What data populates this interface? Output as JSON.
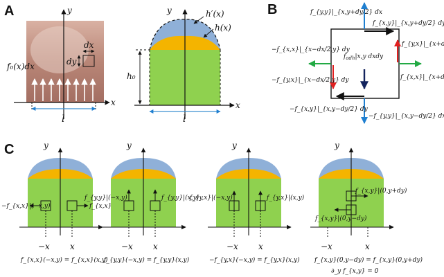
{
  "panels": {
    "a": "A",
    "b": "B",
    "c": "C"
  },
  "a_left": {
    "y": "y",
    "x": "x",
    "dx": "dx",
    "dy": "dy",
    "f0": "f₀(x)dx",
    "l": "l"
  },
  "a_right": {
    "y": "y",
    "x": "x",
    "hprime": "h′(x)",
    "h": "h(x)",
    "h0": "h₀",
    "l": "l"
  },
  "b": {
    "top_left": "f_{y,y}|_{x,y+dy/2} dx",
    "top_right": "f_{x,y}|_{x,y+dy/2} dy",
    "right_top": "f_{y,x}|_{x+dx/2,y} dy",
    "right_bottom": "f_{x,x}|_{x+dx/2,y} dy",
    "left_top": "−f_{x,x}|_{x−dx/2,y} dy",
    "left_bottom": "−f_{y,x}|_{x−dx/2,y} dy",
    "bottom_left": "−f_{x,y}|_{x,y−dy/2} dy",
    "bottom_right": "−f_{y,y}|_{x,y−dy/2} dx",
    "center": "f_{adh}|_{x,y} dxdy",
    "center_main": "f",
    "center_sub": "adh",
    "center_rest": "|x,y dxdy"
  },
  "c": [
    {
      "left_force": "−f_{x,x}|(−x,y)",
      "right_force": "f_{x,x}|(x,y)",
      "neg_x": "−x",
      "x": "x",
      "y": "y",
      "equation": "f_{x,x}(−x,y) = f_{x,x}(x,y)"
    },
    {
      "left_force": "f_{y,y}|(−x,y)",
      "right_force": "f_{y,y}|(x,y)",
      "neg_x": "−x",
      "x": "x",
      "y": "y",
      "equation": "f_{y,y}(−x,y) = f_{y,y}(x,y)"
    },
    {
      "left_force": "f_{y,x}|(−x,y)",
      "right_force": "f_{y,x}|(x,y)",
      "neg_x": "−x",
      "x": "x",
      "y": "y",
      "equation": "−f_{y,x}(−x,y) = f_{y,x}(x,y)"
    },
    {
      "left_force": "f_{x,y}|(0,y−dy)",
      "right_force": "f_{x,y}|(0,y+dy)",
      "neg_x": "−x",
      "x": "x",
      "y": "y",
      "equation": "f_{x,y}(0,y−dy) = f_{x,y}(0,y+dy)",
      "equation2": "∂_y f_{x,y} = 0"
    }
  ],
  "colors": {
    "green": "#8fd14f",
    "orange": "#f4b400",
    "blue": "#8fb0d8",
    "arrow_black": "#111111",
    "arrow_blue": "#1f7fd0",
    "arrow_red": "#e02020",
    "arrow_green": "#22aa44",
    "arrow_navy": "#13245e",
    "finger": "#b98677"
  }
}
